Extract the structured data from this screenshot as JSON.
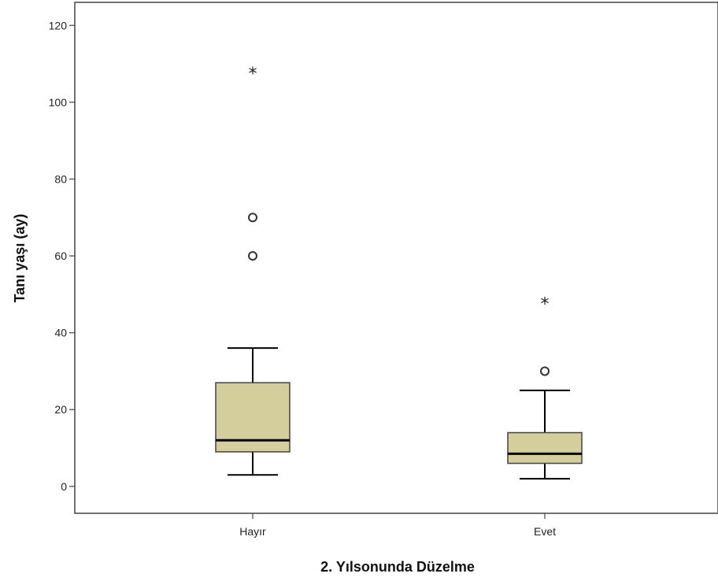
{
  "chart_data": {
    "type": "boxplot",
    "title": "",
    "xlabel": "2. Yılsonunda Düzelme",
    "ylabel": "Tanı yaşı (ay)",
    "ylim": [
      -7,
      126
    ],
    "yticks": [
      0,
      20,
      40,
      60,
      80,
      100,
      120
    ],
    "categories": [
      "Hayır",
      "Evet"
    ],
    "grid": false,
    "legend": "none",
    "box_color": "#d3ce9b",
    "series": [
      {
        "values": [
          {
            "category": "Hayır",
            "whisker_low": 3,
            "q1": 9,
            "median": 12,
            "q3": 27,
            "whisker_high": 36,
            "outliers": [
              60,
              70
            ],
            "extremes": [
              108
            ]
          },
          {
            "category": "Evet",
            "whisker_low": 2,
            "q1": 6,
            "median": 8.5,
            "q3": 14,
            "whisker_high": 25,
            "outliers": [
              30
            ],
            "extremes": [
              48
            ]
          }
        ]
      }
    ]
  }
}
